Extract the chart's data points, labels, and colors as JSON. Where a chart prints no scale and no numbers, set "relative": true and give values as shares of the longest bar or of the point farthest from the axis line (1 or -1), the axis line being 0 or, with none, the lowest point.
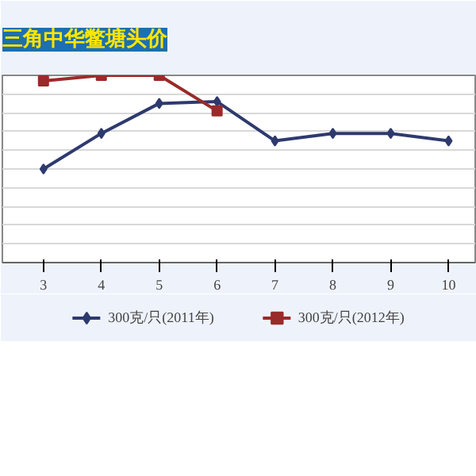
{
  "chart_data": {
    "type": "line",
    "title": "三角中华鳖塘头价",
    "relative": true,
    "x": [
      3,
      4,
      5,
      6,
      7,
      8,
      9,
      10
    ],
    "xlim": [
      2.29,
      10.46
    ],
    "xticks": [
      3,
      4,
      5,
      6,
      7,
      8,
      9,
      10
    ],
    "grid": "y",
    "legend": "bottom",
    "tick_labels": "x",
    "series": [
      {
        "name": "300克/只(2011年)",
        "color": "#2e3a6e",
        "marker": "diamond",
        "values": [
          0.5,
          0.69,
          0.85,
          0.86,
          0.65,
          0.69,
          0.69,
          0.65
        ]
      },
      {
        "name": "300克/只(2012年)",
        "color": "#9b2a2a",
        "marker": "square",
        "values": [
          0.97,
          1,
          1,
          0.81,
          null,
          null,
          null,
          null
        ]
      }
    ]
  }
}
